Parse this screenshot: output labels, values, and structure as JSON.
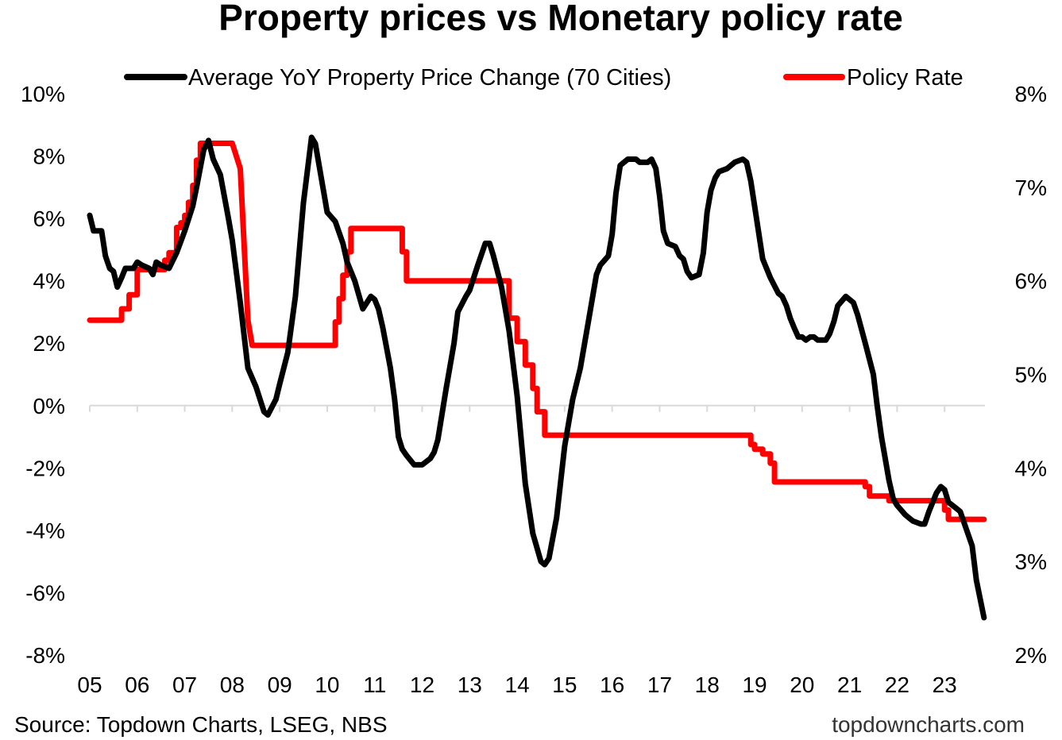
{
  "title": "Property prices vs Monetary policy rate",
  "source": "Source: Topdown Charts, LSEG, NBS",
  "website": "topdowncharts.com",
  "colors": {
    "property": "#000000",
    "policy": "#ff0000",
    "axis": "#d9d9d9"
  },
  "chart_data": {
    "type": "line",
    "title": "Property prices vs Monetary policy rate",
    "legend_position": "top",
    "grid": false,
    "x_ticks": [
      "05",
      "06",
      "07",
      "08",
      "09",
      "10",
      "11",
      "12",
      "13",
      "14",
      "15",
      "16",
      "17",
      "18",
      "19",
      "20",
      "21",
      "22",
      "23"
    ],
    "xlim": [
      2005.0,
      2023.85
    ],
    "y_left_ticks": [
      "10%",
      "8%",
      "6%",
      "4%",
      "2%",
      "0%",
      "-2%",
      "-4%",
      "-6%",
      "-8%"
    ],
    "y_left_lim": [
      -8,
      10
    ],
    "y_right_ticks": [
      "8%",
      "7%",
      "6%",
      "5%",
      "4%",
      "3%",
      "2%"
    ],
    "y_right_lim": [
      2,
      8
    ],
    "series": [
      {
        "name": "Average YoY Property Price Change (70 Cities)",
        "axis": "left",
        "color": "#000000",
        "points": [
          [
            2005.0,
            6.1
          ],
          [
            2005.08,
            5.6
          ],
          [
            2005.25,
            5.6
          ],
          [
            2005.33,
            4.8
          ],
          [
            2005.42,
            4.4
          ],
          [
            2005.5,
            4.3
          ],
          [
            2005.58,
            3.8
          ],
          [
            2005.67,
            4.1
          ],
          [
            2005.75,
            4.4
          ],
          [
            2005.92,
            4.4
          ],
          [
            2006.0,
            4.6
          ],
          [
            2006.1,
            4.5
          ],
          [
            2006.25,
            4.4
          ],
          [
            2006.33,
            4.2
          ],
          [
            2006.4,
            4.6
          ],
          [
            2006.5,
            4.5
          ],
          [
            2006.67,
            4.4
          ],
          [
            2006.83,
            4.9
          ],
          [
            2007.0,
            5.6
          ],
          [
            2007.17,
            6.4
          ],
          [
            2007.25,
            7.0
          ],
          [
            2007.4,
            8.2
          ],
          [
            2007.5,
            8.5
          ],
          [
            2007.6,
            7.9
          ],
          [
            2007.75,
            7.4
          ],
          [
            2007.92,
            6.0
          ],
          [
            2008.0,
            5.3
          ],
          [
            2008.17,
            3.3
          ],
          [
            2008.33,
            1.2
          ],
          [
            2008.5,
            0.6
          ],
          [
            2008.67,
            -0.2
          ],
          [
            2008.75,
            -0.3
          ],
          [
            2008.92,
            0.2
          ],
          [
            2009.0,
            0.7
          ],
          [
            2009.17,
            1.7
          ],
          [
            2009.33,
            3.5
          ],
          [
            2009.5,
            6.5
          ],
          [
            2009.67,
            8.6
          ],
          [
            2009.75,
            8.4
          ],
          [
            2009.92,
            6.9
          ],
          [
            2010.0,
            6.2
          ],
          [
            2010.17,
            5.9
          ],
          [
            2010.33,
            5.2
          ],
          [
            2010.42,
            4.6
          ],
          [
            2010.58,
            4.0
          ],
          [
            2010.75,
            3.1
          ],
          [
            2010.92,
            3.5
          ],
          [
            2011.0,
            3.4
          ],
          [
            2011.08,
            3.1
          ],
          [
            2011.17,
            2.5
          ],
          [
            2011.33,
            1.2
          ],
          [
            2011.42,
            0.2
          ],
          [
            2011.5,
            -1.0
          ],
          [
            2011.58,
            -1.4
          ],
          [
            2011.67,
            -1.6
          ],
          [
            2011.83,
            -1.9
          ],
          [
            2012.0,
            -1.9
          ],
          [
            2012.17,
            -1.7
          ],
          [
            2012.25,
            -1.5
          ],
          [
            2012.33,
            -1.1
          ],
          [
            2012.5,
            0.5
          ],
          [
            2012.67,
            2.0
          ],
          [
            2012.75,
            3.0
          ],
          [
            2012.92,
            3.5
          ],
          [
            2013.0,
            3.7
          ],
          [
            2013.17,
            4.5
          ],
          [
            2013.33,
            5.2
          ],
          [
            2013.42,
            5.2
          ],
          [
            2013.5,
            4.8
          ],
          [
            2013.67,
            3.8
          ],
          [
            2013.83,
            2.4
          ],
          [
            2014.0,
            0.3
          ],
          [
            2014.17,
            -2.5
          ],
          [
            2014.33,
            -4.1
          ],
          [
            2014.5,
            -5.0
          ],
          [
            2014.58,
            -5.1
          ],
          [
            2014.67,
            -4.9
          ],
          [
            2014.83,
            -3.6
          ],
          [
            2015.0,
            -1.3
          ],
          [
            2015.17,
            0.2
          ],
          [
            2015.33,
            1.2
          ],
          [
            2015.5,
            2.7
          ],
          [
            2015.67,
            4.2
          ],
          [
            2015.75,
            4.5
          ],
          [
            2015.92,
            4.8
          ],
          [
            2016.0,
            5.5
          ],
          [
            2016.08,
            6.8
          ],
          [
            2016.17,
            7.7
          ],
          [
            2016.33,
            7.9
          ],
          [
            2016.42,
            7.9
          ],
          [
            2016.5,
            7.9
          ],
          [
            2016.58,
            7.8
          ],
          [
            2016.75,
            7.8
          ],
          [
            2016.83,
            7.9
          ],
          [
            2016.92,
            7.6
          ],
          [
            2017.0,
            6.7
          ],
          [
            2017.08,
            5.6
          ],
          [
            2017.17,
            5.2
          ],
          [
            2017.33,
            5.1
          ],
          [
            2017.42,
            4.8
          ],
          [
            2017.5,
            4.7
          ],
          [
            2017.58,
            4.3
          ],
          [
            2017.67,
            4.1
          ],
          [
            2017.83,
            4.2
          ],
          [
            2017.92,
            4.9
          ],
          [
            2018.0,
            6.2
          ],
          [
            2018.08,
            6.9
          ],
          [
            2018.17,
            7.3
          ],
          [
            2018.25,
            7.5
          ],
          [
            2018.42,
            7.6
          ],
          [
            2018.58,
            7.8
          ],
          [
            2018.75,
            7.9
          ],
          [
            2018.83,
            7.8
          ],
          [
            2018.92,
            7.2
          ],
          [
            2019.0,
            6.4
          ],
          [
            2019.17,
            4.7
          ],
          [
            2019.33,
            4.1
          ],
          [
            2019.5,
            3.6
          ],
          [
            2019.58,
            3.5
          ],
          [
            2019.67,
            3.2
          ],
          [
            2019.75,
            2.8
          ],
          [
            2019.83,
            2.5
          ],
          [
            2019.92,
            2.2
          ],
          [
            2020.0,
            2.2
          ],
          [
            2020.08,
            2.1
          ],
          [
            2020.17,
            2.2
          ],
          [
            2020.25,
            2.2
          ],
          [
            2020.33,
            2.1
          ],
          [
            2020.5,
            2.1
          ],
          [
            2020.58,
            2.3
          ],
          [
            2020.67,
            2.7
          ],
          [
            2020.75,
            3.2
          ],
          [
            2020.92,
            3.5
          ],
          [
            2021.08,
            3.3
          ],
          [
            2021.17,
            2.9
          ],
          [
            2021.33,
            2.0
          ],
          [
            2021.5,
            1.0
          ],
          [
            2021.58,
            0.0
          ],
          [
            2021.67,
            -1.0
          ],
          [
            2021.83,
            -2.4
          ],
          [
            2021.92,
            -3.0
          ],
          [
            2022.0,
            -3.2
          ],
          [
            2022.17,
            -3.5
          ],
          [
            2022.33,
            -3.7
          ],
          [
            2022.5,
            -3.8
          ],
          [
            2022.58,
            -3.8
          ],
          [
            2022.67,
            -3.4
          ],
          [
            2022.83,
            -2.8
          ],
          [
            2022.92,
            -2.6
          ],
          [
            2023.0,
            -2.7
          ],
          [
            2023.08,
            -3.1
          ],
          [
            2023.25,
            -3.3
          ],
          [
            2023.33,
            -3.4
          ],
          [
            2023.42,
            -3.8
          ],
          [
            2023.58,
            -4.5
          ],
          [
            2023.67,
            -5.6
          ],
          [
            2023.75,
            -6.2
          ],
          [
            2023.83,
            -6.8
          ]
        ]
      },
      {
        "name": "Policy Rate",
        "axis": "right",
        "color": "#ff0000",
        "points": [
          [
            2005.0,
            5.58
          ],
          [
            2005.67,
            5.58
          ],
          [
            2005.67,
            5.7
          ],
          [
            2005.83,
            5.7
          ],
          [
            2005.83,
            5.85
          ],
          [
            2006.0,
            5.85
          ],
          [
            2006.0,
            6.12
          ],
          [
            2006.58,
            6.12
          ],
          [
            2006.58,
            6.22
          ],
          [
            2006.67,
            6.22
          ],
          [
            2006.67,
            6.3
          ],
          [
            2006.83,
            6.3
          ],
          [
            2006.83,
            6.57
          ],
          [
            2006.92,
            6.57
          ],
          [
            2006.92,
            6.62
          ],
          [
            2007.0,
            6.62
          ],
          [
            2007.0,
            6.7
          ],
          [
            2007.08,
            6.7
          ],
          [
            2007.08,
            6.84
          ],
          [
            2007.17,
            6.84
          ],
          [
            2007.17,
            7.02
          ],
          [
            2007.25,
            7.02
          ],
          [
            2007.25,
            7.29
          ],
          [
            2007.33,
            7.29
          ],
          [
            2007.33,
            7.47
          ],
          [
            2008.0,
            7.47
          ],
          [
            2008.17,
            7.2
          ],
          [
            2008.33,
            5.58
          ],
          [
            2008.42,
            5.31
          ],
          [
            2010.17,
            5.31
          ],
          [
            2010.17,
            5.56
          ],
          [
            2010.25,
            5.56
          ],
          [
            2010.25,
            5.81
          ],
          [
            2010.33,
            5.81
          ],
          [
            2010.33,
            6.06
          ],
          [
            2010.42,
            6.06
          ],
          [
            2010.42,
            6.31
          ],
          [
            2010.5,
            6.31
          ],
          [
            2010.5,
            6.56
          ],
          [
            2011.58,
            6.56
          ],
          [
            2011.58,
            6.31
          ],
          [
            2011.67,
            6.31
          ],
          [
            2011.67,
            6.0
          ],
          [
            2013.83,
            6.0
          ],
          [
            2013.83,
            5.6
          ],
          [
            2014.0,
            5.6
          ],
          [
            2014.0,
            5.35
          ],
          [
            2014.17,
            5.35
          ],
          [
            2014.17,
            5.1
          ],
          [
            2014.33,
            5.1
          ],
          [
            2014.33,
            4.85
          ],
          [
            2014.42,
            4.85
          ],
          [
            2014.42,
            4.6
          ],
          [
            2014.58,
            4.6
          ],
          [
            2014.58,
            4.35
          ],
          [
            2018.92,
            4.35
          ],
          [
            2018.92,
            4.25
          ],
          [
            2019.0,
            4.25
          ],
          [
            2019.0,
            4.2
          ],
          [
            2019.17,
            4.2
          ],
          [
            2019.17,
            4.15
          ],
          [
            2019.33,
            4.15
          ],
          [
            2019.33,
            4.05
          ],
          [
            2019.42,
            4.05
          ],
          [
            2019.42,
            3.85
          ],
          [
            2020.17,
            3.85
          ],
          [
            2021.33,
            3.85
          ],
          [
            2021.33,
            3.8
          ],
          [
            2021.42,
            3.8
          ],
          [
            2021.42,
            3.7
          ],
          [
            2021.83,
            3.7
          ],
          [
            2021.83,
            3.65
          ],
          [
            2022.5,
            3.65
          ],
          [
            2022.5,
            3.65
          ],
          [
            2022.67,
            3.65
          ],
          [
            2022.67,
            3.65
          ],
          [
            2023.0,
            3.65
          ],
          [
            2023.0,
            3.55
          ],
          [
            2023.08,
            3.55
          ],
          [
            2023.08,
            3.45
          ],
          [
            2023.83,
            3.45
          ]
        ]
      }
    ]
  }
}
